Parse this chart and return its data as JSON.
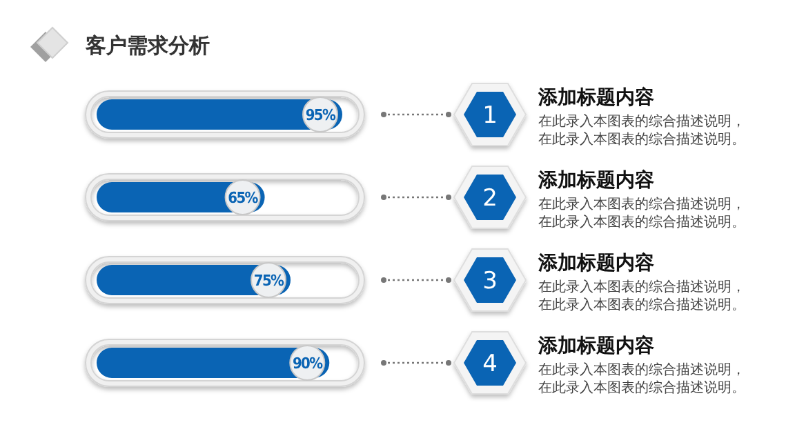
{
  "chart_data": {
    "type": "bar",
    "orientation": "horizontal",
    "title": "客户需求分析",
    "categories": [
      "1",
      "2",
      "3",
      "4"
    ],
    "values": [
      95,
      65,
      75,
      90
    ],
    "value_labels": [
      "95%",
      "65%",
      "75%",
      "90%"
    ],
    "color": "#0a64b4",
    "annotations": [
      "添加标题内容",
      "在此录入本图表的综合描述说明，",
      "在此录入本图表的综合描述说明。",
      "添加标题内容",
      "在此录入本图表的综合描述说明，",
      "在此录入本图表的综合描述说明。",
      "添加标题内容",
      "在此录入本图表的综合描述说明，",
      "在此录入本图表的综合描述说明。",
      "添加标题内容",
      "在此录入本图表的综合描述说明，",
      "在此录入本图表的综合描述说明。"
    ]
  }
}
